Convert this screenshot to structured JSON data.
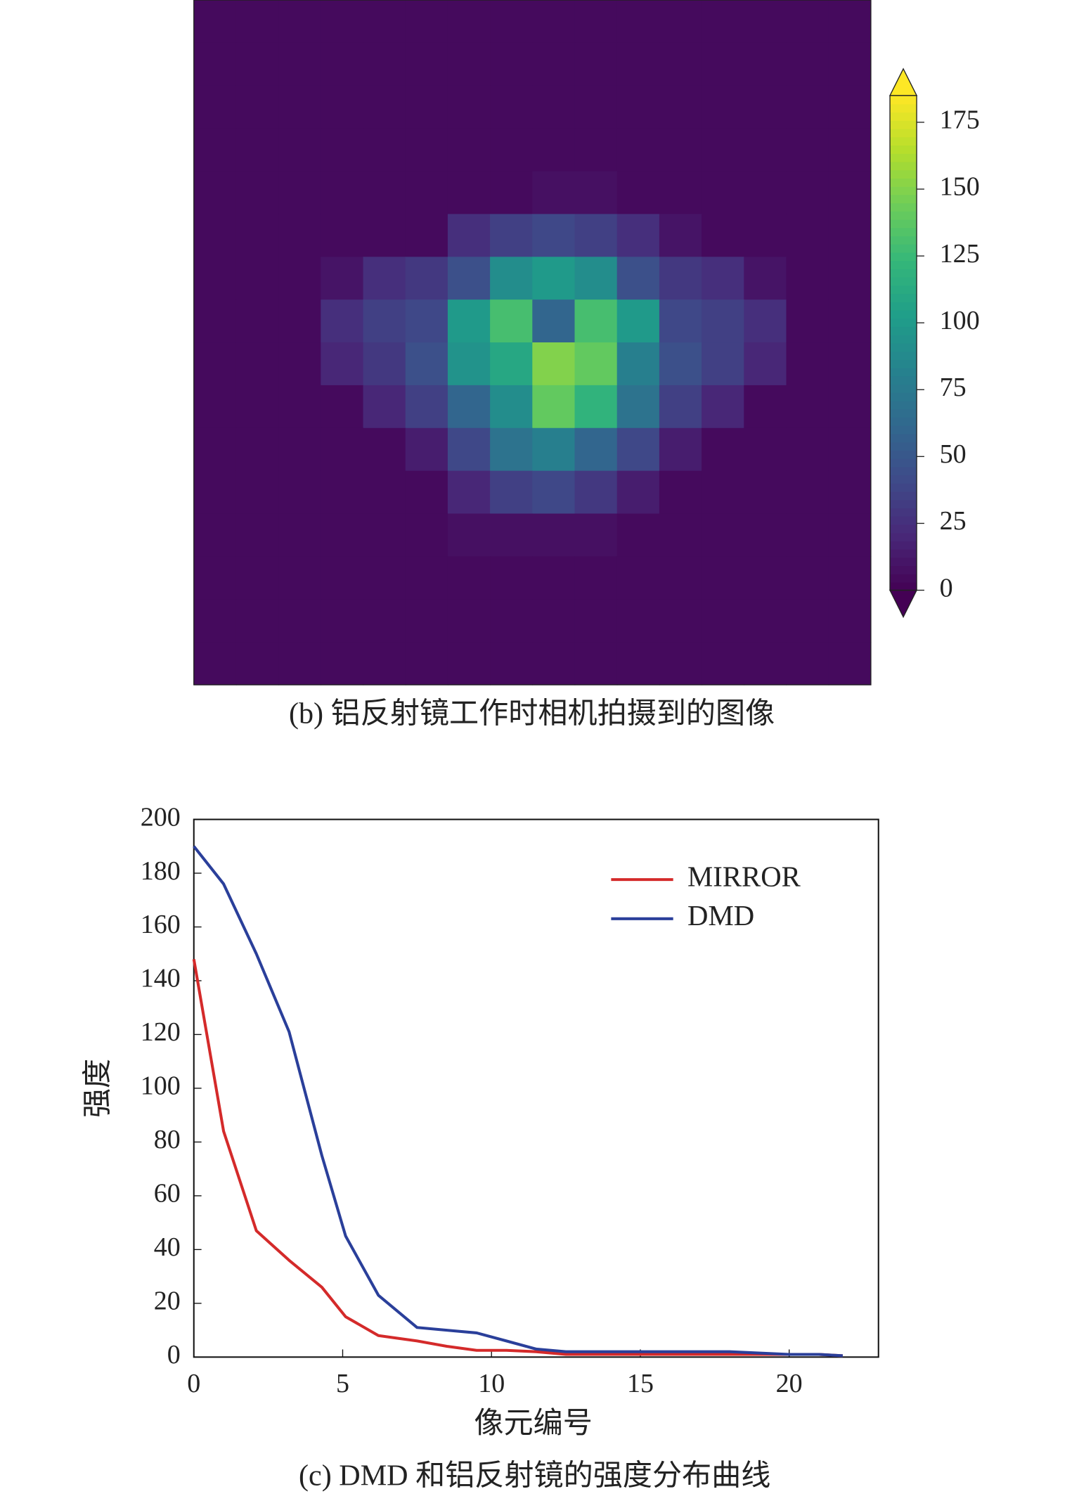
{
  "chart_data": [
    {
      "type": "heatmap",
      "caption": "(b) 铝反射镜工作时相机拍摄到的图像",
      "colormap": "viridis",
      "clim": [
        0,
        185
      ],
      "cbar_ticks": [
        0,
        25,
        50,
        75,
        100,
        125,
        150,
        175
      ],
      "values": [
        [
          5,
          5,
          5,
          5,
          5,
          5,
          5,
          5,
          5,
          5,
          5,
          5,
          5,
          5,
          5,
          5
        ],
        [
          5,
          5,
          5,
          5,
          5,
          5,
          5,
          5,
          5,
          5,
          5,
          5,
          5,
          5,
          5,
          5
        ],
        [
          5,
          5,
          5,
          5,
          5,
          5,
          5,
          5,
          5,
          5,
          5,
          5,
          5,
          5,
          5,
          5
        ],
        [
          5,
          5,
          5,
          5,
          5,
          5,
          5,
          5,
          5,
          5,
          5,
          5,
          5,
          5,
          5,
          5
        ],
        [
          5,
          5,
          5,
          5,
          5,
          5,
          5,
          5,
          8,
          8,
          5,
          5,
          5,
          5,
          5,
          5
        ],
        [
          5,
          5,
          5,
          5,
          5,
          5,
          25,
          35,
          40,
          35,
          25,
          10,
          5,
          5,
          5,
          5
        ],
        [
          5,
          5,
          5,
          10,
          25,
          30,
          45,
          90,
          100,
          90,
          45,
          30,
          25,
          10,
          5,
          5
        ],
        [
          5,
          5,
          5,
          25,
          35,
          40,
          100,
          130,
          60,
          130,
          100,
          40,
          35,
          25,
          5,
          5
        ],
        [
          5,
          5,
          5,
          20,
          30,
          45,
          95,
          110,
          150,
          140,
          80,
          45,
          35,
          20,
          5,
          5
        ],
        [
          5,
          5,
          5,
          5,
          20,
          35,
          60,
          90,
          140,
          120,
          70,
          35,
          20,
          5,
          5,
          5
        ],
        [
          5,
          5,
          5,
          5,
          5,
          15,
          40,
          70,
          80,
          60,
          40,
          15,
          5,
          5,
          5,
          5
        ],
        [
          5,
          5,
          5,
          5,
          5,
          5,
          20,
          35,
          40,
          30,
          15,
          5,
          5,
          5,
          5,
          5
        ],
        [
          5,
          5,
          5,
          5,
          5,
          5,
          8,
          8,
          8,
          8,
          5,
          5,
          5,
          5,
          5,
          5
        ],
        [
          5,
          5,
          5,
          5,
          5,
          5,
          5,
          5,
          5,
          5,
          5,
          5,
          5,
          5,
          5,
          5
        ],
        [
          5,
          5,
          5,
          5,
          5,
          5,
          5,
          5,
          5,
          5,
          5,
          5,
          5,
          5,
          5,
          5
        ],
        [
          5,
          5,
          5,
          5,
          5,
          5,
          5,
          5,
          5,
          5,
          5,
          5,
          5,
          5,
          5,
          5
        ]
      ]
    },
    {
      "type": "line",
      "caption": "(c) DMD 和铝反射镜的强度分布曲线",
      "xlabel": "像元编号",
      "ylabel": "强度",
      "x": [
        0,
        1,
        2.1,
        3.2,
        4.3,
        5.1,
        6.2,
        7.5,
        8.5,
        9.5,
        10.5,
        11.5,
        12.5,
        14,
        16,
        18,
        20,
        21,
        21.8
      ],
      "series": [
        {
          "name": "MIRROR",
          "color": "#d42a2a",
          "values": [
            148,
            84,
            47,
            36,
            26,
            15,
            8,
            6,
            4,
            2.5,
            2.5,
            2,
            1,
            1,
            1,
            1,
            1,
            1,
            0.5
          ]
        },
        {
          "name": "DMD",
          "color": "#2a3f9a",
          "values": [
            190,
            176,
            150,
            121,
            75,
            45,
            23,
            11,
            10,
            9,
            6,
            3,
            2,
            2,
            2,
            2,
            1,
            1,
            0.5
          ]
        }
      ],
      "xlim": [
        0,
        23
      ],
      "ylim": [
        0,
        200
      ],
      "xticks": [
        0,
        5,
        10,
        15,
        20
      ],
      "yticks": [
        0,
        20,
        40,
        60,
        80,
        100,
        120,
        140,
        160,
        180,
        200
      ],
      "legend": "upper right"
    }
  ]
}
